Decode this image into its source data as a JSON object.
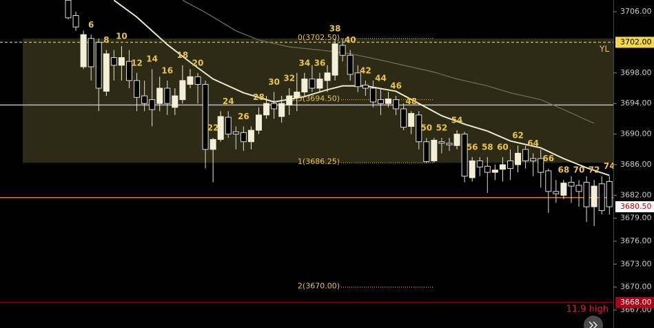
{
  "chart_data": {
    "type": "candlestick",
    "categories": [
      null,
      null,
      null,
      6,
      null,
      8,
      null,
      10,
      null,
      12,
      null,
      14,
      null,
      16,
      null,
      18,
      null,
      20,
      null,
      22,
      null,
      24,
      null,
      26,
      null,
      28,
      null,
      30,
      null,
      32,
      null,
      34,
      null,
      36,
      null,
      38,
      null,
      40,
      null,
      42,
      null,
      44,
      null,
      46,
      null,
      48,
      null,
      50,
      null,
      52,
      null,
      54,
      null,
      56,
      null,
      58,
      null,
      60,
      null,
      62,
      null,
      64,
      null,
      66,
      null,
      68,
      null,
      70,
      null,
      72,
      null,
      74
    ],
    "open": [
      3707.5,
      3705.5,
      3698.8,
      3702.5,
      3702,
      3695.6,
      3700,
      3699,
      3699.5,
      3697,
      3695,
      3694.5,
      3694,
      3696,
      3693.5,
      3694.5,
      3696.5,
      3697.5,
      3696.5,
      3688,
      3689.3,
      3692.2,
      3690.3,
      3690.2,
      3689,
      3690.5,
      3692.5,
      3694,
      3692.3,
      3693.8,
      3694.8,
      3695.5,
      3697.2,
      3696,
      3697,
      3697.7,
      3701.6,
      3700.3,
      3698,
      3696.4,
      3696,
      3694.5,
      3694,
      3694.5,
      3693.3,
      3691,
      3692.5,
      3689,
      3686.5,
      3689,
      3688.8,
      3688.5,
      3690,
      3684.3,
      3686.5,
      3685.8,
      3685,
      3685.4,
      3686.5,
      3686,
      3688,
      3686.8,
      3686.8,
      3685.2,
      3682.5,
      3682,
      3683.7,
      3683.3,
      3683.7,
      3680.5,
      3683.5,
      3683.8
    ],
    "high": [
      3707.5,
      3706,
      3703.5,
      3703,
      3702.5,
      3701,
      3701,
      3701.5,
      3701,
      3698,
      3697,
      3698.5,
      3697.5,
      3697,
      3696,
      3699,
      3698.5,
      3698,
      3697,
      3689.5,
      3693,
      3693,
      3691,
      3691,
      3691,
      3693.5,
      3695,
      3695.5,
      3695,
      3696,
      3698,
      3698,
      3699,
      3698,
      3699,
      3702.5,
      3702.5,
      3701,
      3699,
      3697,
      3697,
      3696,
      3695.5,
      3695,
      3694,
      3693,
      3693,
      3689.5,
      3689.5,
      3689.5,
      3689.5,
      3690.5,
      3690.3,
      3687,
      3687,
      3687,
      3686,
      3687,
      3688,
      3688.5,
      3688.5,
      3687.5,
      3688,
      3685.5,
      3684,
      3684,
      3684.5,
      3684,
      3684.5,
      3684,
      3684.5,
      3684.5
    ],
    "low": [
      3705,
      3703.5,
      3698.5,
      3697,
      3693,
      3695,
      3697,
      3697,
      3696,
      3693,
      3693,
      3691,
      3693,
      3692.5,
      3692.5,
      3694,
      3696,
      3694,
      3685.5,
      3683.7,
      3689,
      3689.5,
      3688,
      3687.8,
      3688,
      3690,
      3692,
      3692,
      3691.5,
      3692.5,
      3693,
      3695,
      3695.5,
      3695.5,
      3695.5,
      3697,
      3699.5,
      3697,
      3695.5,
      3695,
      3693.5,
      3692.5,
      3693.5,
      3692.5,
      3690.5,
      3690,
      3688,
      3686.2,
      3686.3,
      3687.5,
      3687.8,
      3688,
      3683.7,
      3683.8,
      3684.5,
      3682.3,
      3684,
      3683.8,
      3684,
      3685,
      3685.5,
      3684.5,
      3683,
      3679.7,
      3681,
      3681.5,
      3681,
      3680.5,
      3678.5,
      3678,
      3679.5,
      3679.5
    ],
    "close": [
      3705.2,
      3704,
      3703,
      3698.8,
      3696,
      3700.5,
      3699,
      3700,
      3697,
      3694.8,
      3694,
      3693.2,
      3696,
      3694,
      3695,
      3697,
      3697.5,
      3696.5,
      3688,
      3689.3,
      3692.3,
      3690,
      3690,
      3689,
      3690.5,
      3692.5,
      3694,
      3693.3,
      3694,
      3695,
      3695.5,
      3697.2,
      3696,
      3697.2,
      3698,
      3701.8,
      3700.3,
      3697.8,
      3696.2,
      3696,
      3694.2,
      3694,
      3694.6,
      3693.3,
      3690.9,
      3692.7,
      3689,
      3686.4,
      3689.2,
      3688.8,
      3688.6,
      3690,
      3684.5,
      3686.5,
      3685.7,
      3685,
      3685.3,
      3686,
      3685.5,
      3687.5,
      3686.5,
      3686.5,
      3685,
      3682.5,
      3682.2,
      3683.6,
      3683.2,
      3682.5,
      3680.5,
      3683.2,
      3680,
      3680.5
    ],
    "up_color": "#f3eed6",
    "down_color": "#000000",
    "label_color": "#e8c547",
    "lines": [
      {
        "color": "#efe9cc",
        "x": [
          9,
          12,
          16,
          19,
          22,
          26,
          30,
          34,
          37,
          39,
          42,
          46,
          49,
          52,
          55,
          58,
          61,
          65,
          68,
          71,
          74
        ],
        "values": [
          3707.5,
          3705.3,
          3701.7,
          3699.4,
          3697.2,
          3695.4,
          3694.2,
          3694.9,
          3695.8,
          3696.3,
          3696.3,
          3695.6,
          3694,
          3692.4,
          3691.3,
          3690.4,
          3689.1,
          3688.2,
          3686.8,
          3685.6,
          3684.6
        ]
      },
      {
        "color": "#6b6b60",
        "x": [
          18,
          21,
          25,
          28,
          32,
          36,
          40,
          43,
          47,
          51,
          54,
          58,
          61,
          65,
          68,
          72
        ],
        "values": [
          3707.5,
          3705.9,
          3703.5,
          3702.3,
          3701.4,
          3701,
          3700.5,
          3699.9,
          3699,
          3698.1,
          3697.2,
          3696.3,
          3695.4,
          3694.5,
          3693.2,
          3691.4
        ]
      }
    ],
    "hlines": [
      {
        "value": 3702,
        "color": "#b8a860",
        "dash": true,
        "label": "YL"
      },
      {
        "value": 3693.8,
        "color": "#bdbdbd"
      },
      {
        "value": 3681.7,
        "color": "#e07a2a"
      },
      {
        "value": 3668,
        "color": "#8a0010"
      }
    ],
    "fib": {
      "color": "#e8c547",
      "fill": "#35321a",
      "levels": [
        {
          "value": 3702.5,
          "label": "0(3702.50)"
        },
        {
          "value": 3694.5,
          "label": "0.5(3694.50)"
        },
        {
          "value": 3686.25,
          "label": "1(3686.25)"
        },
        {
          "value": 3670,
          "label": "2(3670.00)"
        }
      ]
    },
    "ylim": [
      3664.65,
      3707.53
    ],
    "yticks": [
      {
        "value": 3706,
        "label": "3706.00"
      },
      {
        "value": 3698,
        "label": "3698.00"
      },
      {
        "value": 3694,
        "label": "3694.00"
      },
      {
        "value": 3690,
        "label": "3690.00"
      },
      {
        "value": 3686,
        "label": "3686.00"
      },
      {
        "value": 3682,
        "label": "3682.00"
      },
      {
        "value": 3679,
        "label": "3679.00"
      },
      {
        "value": 3676,
        "label": "3676.00"
      },
      {
        "value": 3673,
        "label": "3673.00"
      },
      {
        "value": 3670,
        "label": "3670.00"
      },
      {
        "value": 3667,
        "label": "3667.00"
      }
    ],
    "price_markers": [
      {
        "value": 3702,
        "label": "3702.00",
        "color": "#f2d64b",
        "text_color": "#000000"
      },
      {
        "value": 3680.5,
        "label": "3680.50",
        "color": "#ffffff",
        "text_color": "#c00000"
      },
      {
        "value": 3668,
        "label": "3668.00",
        "color": "#b00018",
        "text_color": "#ffffff"
      }
    ],
    "annotation": {
      "text": "11.9 high",
      "color": "#e0202a"
    }
  }
}
